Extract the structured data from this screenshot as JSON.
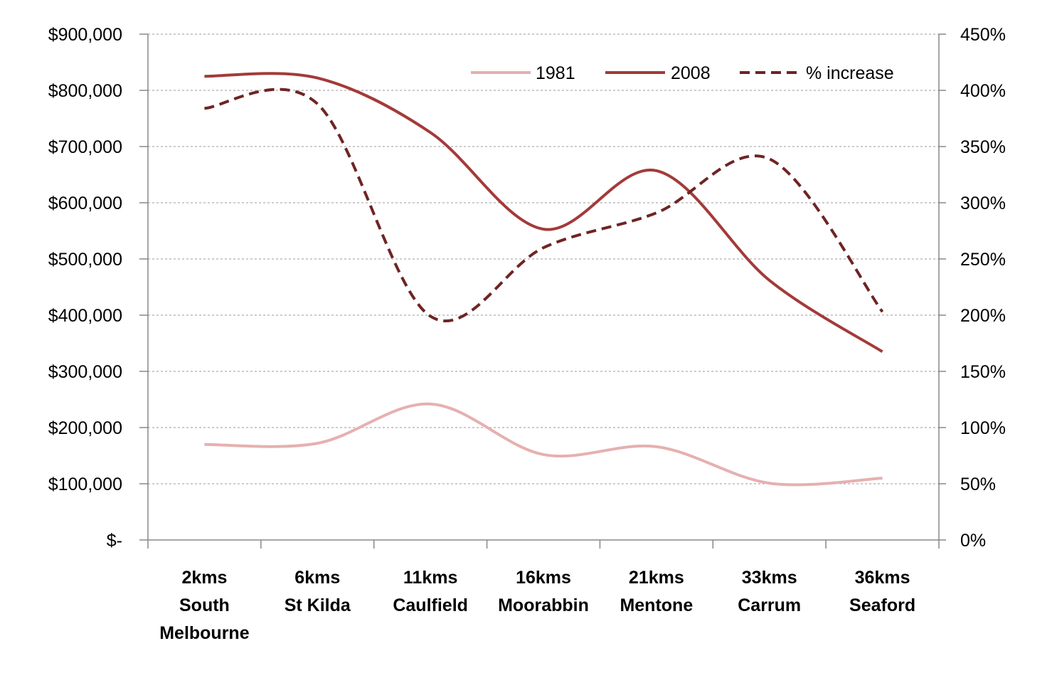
{
  "chart_data": {
    "type": "line",
    "categories": [
      [
        "2kms",
        "South",
        "Melbourne"
      ],
      [
        "6kms",
        "St Kilda"
      ],
      [
        "11kms",
        "Caulfield"
      ],
      [
        "16kms",
        "Moorabbin"
      ],
      [
        "21kms",
        "Mentone"
      ],
      [
        "33kms",
        "Carrum"
      ],
      [
        "36kms",
        "Seaford"
      ]
    ],
    "y_left": {
      "ylim": [
        0,
        900000
      ],
      "ticks": [
        0,
        100000,
        200000,
        300000,
        400000,
        500000,
        600000,
        700000,
        800000,
        900000
      ],
      "tick_labels": [
        "$-",
        "$100,000",
        "$200,000",
        "$300,000",
        "$400,000",
        "$500,000",
        "$600,000",
        "$700,000",
        "$800,000",
        "$900,000"
      ]
    },
    "y_right": {
      "ylim": [
        0,
        450
      ],
      "ticks": [
        0,
        50,
        100,
        150,
        200,
        250,
        300,
        350,
        400,
        450
      ],
      "tick_labels": [
        "0%",
        "50%",
        "100%",
        "150%",
        "200%",
        "250%",
        "300%",
        "350%",
        "400%",
        "450%"
      ]
    },
    "series": [
      {
        "name": "1981",
        "axis": "left",
        "color": "#e6b0b0",
        "dash": "solid",
        "values": [
          170000,
          172000,
          242000,
          152000,
          166000,
          101000,
          110000
        ]
      },
      {
        "name": "2008",
        "axis": "left",
        "color": "#a33a3a",
        "dash": "solid",
        "values": [
          825000,
          822000,
          725000,
          553000,
          657000,
          462000,
          335000
        ]
      },
      {
        "name": "% increase",
        "axis": "right",
        "color": "#6e2424",
        "dash": "dashed",
        "values": [
          384,
          388,
          199,
          260,
          291,
          339,
          203
        ]
      }
    ],
    "grid": true,
    "legend_position": "top-right",
    "title": "",
    "xlabel": "",
    "ylabel": ""
  }
}
